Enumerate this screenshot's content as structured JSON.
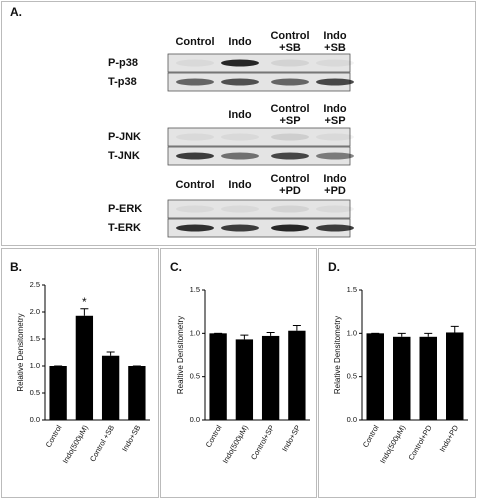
{
  "blots": {
    "label": "A.",
    "sections": [
      {
        "headers": [
          [
            "Control"
          ],
          [
            "Indo"
          ],
          [
            "Control",
            "+SB"
          ],
          [
            "Indo",
            "+SB"
          ]
        ],
        "rows": [
          "P-p38",
          "T-p38"
        ]
      },
      {
        "headers": [
          [
            "Indo"
          ],
          [
            "Control",
            "+SP"
          ],
          [
            "Indo",
            "+SP"
          ]
        ],
        "rows": [
          "P-JNK",
          "T-JNK"
        ]
      },
      {
        "headers": [
          [
            "Control"
          ],
          [
            "Indo"
          ],
          [
            "Control",
            "+PD"
          ],
          [
            "Indo",
            "+PD"
          ]
        ],
        "rows": [
          "P-ERK",
          "T-ERK"
        ]
      }
    ]
  },
  "chart_data": [
    {
      "type": "bar",
      "label": "B.",
      "y_label": "Relative Densitometry",
      "annotation": "*",
      "categories": [
        "Control",
        "Indo(500μM)",
        "Control +SB",
        "Indo+SB"
      ],
      "values": [
        1.0,
        1.93,
        1.19,
        1.0
      ],
      "errors": [
        0,
        0.13,
        0.07,
        0
      ],
      "color": "#000000",
      "ylim": [
        0,
        2.5
      ],
      "yticks": [
        {
          "value": 0,
          "label": "0.0"
        },
        {
          "value": 0.5,
          "label": "0.5"
        },
        {
          "value": 1,
          "label": "1.0"
        },
        {
          "value": 1.5,
          "label": "1.5"
        },
        {
          "value": 2,
          "label": "2.0"
        },
        {
          "value": 2.5,
          "label": "2.5"
        }
      ]
    },
    {
      "type": "bar",
      "label": "C.",
      "y_label": "Realtive Densitometry",
      "categories": [
        "Control",
        "Indo(500μM)",
        "Control+SP",
        "Indo+SP"
      ],
      "values": [
        1.0,
        0.93,
        0.97,
        1.03
      ],
      "errors": [
        0,
        0.05,
        0.04,
        0.06
      ],
      "color": "#000000",
      "ylim": [
        0,
        1.5
      ],
      "yticks": [
        {
          "value": 0,
          "label": "0.0"
        },
        {
          "value": 0.5,
          "label": "0.5"
        },
        {
          "value": 1,
          "label": "1.0"
        },
        {
          "value": 1.5,
          "label": "1.5"
        }
      ]
    },
    {
      "type": "bar",
      "label": "D.",
      "y_label": "Relative Densitometry",
      "categories": [
        "Control",
        "Indo(500μM)",
        "Control+PD",
        "Indo+PD"
      ],
      "values": [
        1.0,
        0.96,
        0.96,
        1.01
      ],
      "errors": [
        0,
        0.04,
        0.04,
        0.07
      ],
      "color": "#000000",
      "ylim": [
        0,
        1.5
      ],
      "yticks": [
        {
          "value": 0,
          "label": "0.0"
        },
        {
          "value": 0.5,
          "label": "0.5"
        },
        {
          "value": 1,
          "label": "1.0"
        },
        {
          "value": 1.5,
          "label": "1.5"
        }
      ]
    }
  ]
}
